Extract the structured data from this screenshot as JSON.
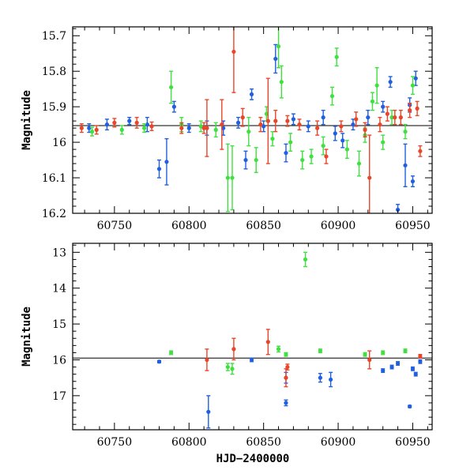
{
  "chart_data": [
    {
      "type": "scatter",
      "title": "",
      "xlabel": "",
      "ylabel": "Magnitude",
      "xlim": [
        60722,
        60963
      ],
      "ylim": [
        16.2,
        15.675
      ],
      "y_inverted": true,
      "xticks": [
        60750,
        60800,
        60850,
        60900,
        60950
      ],
      "xtick_labels": [
        "60750",
        "60800",
        "60850",
        "60900",
        "60950"
      ],
      "yticks": [
        15.7,
        15.8,
        15.9,
        16.0,
        16.1,
        16.2
      ],
      "ytick_labels": [
        "15.7",
        "15.8",
        "15.9",
        "16",
        "16.1",
        "16.2"
      ],
      "reference_line": 15.953,
      "series": [
        {
          "name": "blue",
          "color": "#1f5fe0",
          "points": [
            {
              "x": 60733,
              "y": 15.96,
              "e": 0.012
            },
            {
              "x": 60745,
              "y": 15.95,
              "e": 0.015
            },
            {
              "x": 60760,
              "y": 15.94,
              "e": 0.01
            },
            {
              "x": 60772,
              "y": 15.95,
              "e": 0.02
            },
            {
              "x": 60780,
              "y": 16.075,
              "e": 0.025
            },
            {
              "x": 60785,
              "y": 16.055,
              "e": 0.065
            },
            {
              "x": 60790,
              "y": 15.9,
              "e": 0.015
            },
            {
              "x": 60800,
              "y": 15.96,
              "e": 0.012
            },
            {
              "x": 60812,
              "y": 15.96,
              "e": 0.02
            },
            {
              "x": 60823,
              "y": 15.96,
              "e": 0.02
            },
            {
              "x": 60833,
              "y": 15.945,
              "e": 0.015
            },
            {
              "x": 60838,
              "y": 16.05,
              "e": 0.025
            },
            {
              "x": 60842,
              "y": 15.865,
              "e": 0.015
            },
            {
              "x": 60850,
              "y": 15.955,
              "e": 0.015
            },
            {
              "x": 60858,
              "y": 15.765,
              "e": 0.04
            },
            {
              "x": 60865,
              "y": 16.03,
              "e": 0.025
            },
            {
              "x": 60870,
              "y": 15.935,
              "e": 0.015
            },
            {
              "x": 60880,
              "y": 15.955,
              "e": 0.015
            },
            {
              "x": 60890,
              "y": 15.93,
              "e": 0.02
            },
            {
              "x": 60898,
              "y": 15.975,
              "e": 0.02
            },
            {
              "x": 60903,
              "y": 15.995,
              "e": 0.02
            },
            {
              "x": 60910,
              "y": 15.95,
              "e": 0.015
            },
            {
              "x": 60920,
              "y": 15.93,
              "e": 0.02
            },
            {
              "x": 60930,
              "y": 15.9,
              "e": 0.015
            },
            {
              "x": 60935,
              "y": 15.83,
              "e": 0.015
            },
            {
              "x": 60940,
              "y": 16.19,
              "e": 0.015
            },
            {
              "x": 60945,
              "y": 16.065,
              "e": 0.06
            },
            {
              "x": 60948,
              "y": 15.895,
              "e": 0.02
            },
            {
              "x": 60950,
              "y": 16.11,
              "e": 0.015
            },
            {
              "x": 60952,
              "y": 15.82,
              "e": 0.02
            }
          ]
        },
        {
          "name": "green",
          "color": "#3fe03f",
          "points": [
            {
              "x": 60735,
              "y": 15.97,
              "e": 0.012
            },
            {
              "x": 60755,
              "y": 15.965,
              "e": 0.012
            },
            {
              "x": 60770,
              "y": 15.96,
              "e": 0.012
            },
            {
              "x": 60788,
              "y": 15.845,
              "e": 0.045
            },
            {
              "x": 60795,
              "y": 15.95,
              "e": 0.02
            },
            {
              "x": 60808,
              "y": 15.955,
              "e": 0.015
            },
            {
              "x": 60818,
              "y": 15.965,
              "e": 0.02
            },
            {
              "x": 60826,
              "y": 16.1,
              "e": 0.095
            },
            {
              "x": 60829,
              "y": 16.1,
              "e": 0.09
            },
            {
              "x": 60840,
              "y": 15.97,
              "e": 0.04
            },
            {
              "x": 60845,
              "y": 16.05,
              "e": 0.035
            },
            {
              "x": 60852,
              "y": 15.92,
              "e": 0.02
            },
            {
              "x": 60856,
              "y": 15.99,
              "e": 0.02
            },
            {
              "x": 60860,
              "y": 15.73,
              "e": 0.06
            },
            {
              "x": 60862,
              "y": 15.83,
              "e": 0.045
            },
            {
              "x": 60868,
              "y": 16.0,
              "e": 0.025
            },
            {
              "x": 60876,
              "y": 16.05,
              "e": 0.025
            },
            {
              "x": 60882,
              "y": 16.04,
              "e": 0.02
            },
            {
              "x": 60890,
              "y": 16.01,
              "e": 0.025
            },
            {
              "x": 60896,
              "y": 15.87,
              "e": 0.025
            },
            {
              "x": 60899,
              "y": 15.76,
              "e": 0.025
            },
            {
              "x": 60906,
              "y": 16.02,
              "e": 0.025
            },
            {
              "x": 60914,
              "y": 16.06,
              "e": 0.035
            },
            {
              "x": 60918,
              "y": 15.98,
              "e": 0.02
            },
            {
              "x": 60923,
              "y": 15.885,
              "e": 0.025
            },
            {
              "x": 60926,
              "y": 15.84,
              "e": 0.05
            },
            {
              "x": 60930,
              "y": 16.0,
              "e": 0.02
            },
            {
              "x": 60936,
              "y": 15.93,
              "e": 0.02
            },
            {
              "x": 60945,
              "y": 15.97,
              "e": 0.02
            },
            {
              "x": 60950,
              "y": 15.84,
              "e": 0.025
            }
          ]
        },
        {
          "name": "red",
          "color": "#e8462a",
          "points": [
            {
              "x": 60728,
              "y": 15.96,
              "e": 0.012
            },
            {
              "x": 60738,
              "y": 15.965,
              "e": 0.012
            },
            {
              "x": 60750,
              "y": 15.945,
              "e": 0.012
            },
            {
              "x": 60765,
              "y": 15.945,
              "e": 0.015
            },
            {
              "x": 60775,
              "y": 15.955,
              "e": 0.012
            },
            {
              "x": 60795,
              "y": 15.96,
              "e": 0.015
            },
            {
              "x": 60810,
              "y": 15.96,
              "e": 0.015
            },
            {
              "x": 60812,
              "y": 15.96,
              "e": 0.08
            },
            {
              "x": 60822,
              "y": 15.95,
              "e": 0.07
            },
            {
              "x": 60830,
              "y": 15.745,
              "e": 0.115
            },
            {
              "x": 60836,
              "y": 15.93,
              "e": 0.025
            },
            {
              "x": 60848,
              "y": 15.95,
              "e": 0.02
            },
            {
              "x": 60853,
              "y": 15.94,
              "e": 0.12
            },
            {
              "x": 60858,
              "y": 15.94,
              "e": 0.03
            },
            {
              "x": 60866,
              "y": 15.94,
              "e": 0.015
            },
            {
              "x": 60874,
              "y": 15.95,
              "e": 0.015
            },
            {
              "x": 60886,
              "y": 15.96,
              "e": 0.02
            },
            {
              "x": 60892,
              "y": 16.04,
              "e": 0.02
            },
            {
              "x": 60902,
              "y": 15.955,
              "e": 0.015
            },
            {
              "x": 60912,
              "y": 15.935,
              "e": 0.02
            },
            {
              "x": 60918,
              "y": 15.965,
              "e": 0.02
            },
            {
              "x": 60921,
              "y": 16.1,
              "e": 0.12
            },
            {
              "x": 60928,
              "y": 15.95,
              "e": 0.02
            },
            {
              "x": 60933,
              "y": 15.92,
              "e": 0.02
            },
            {
              "x": 60938,
              "y": 15.93,
              "e": 0.02
            },
            {
              "x": 60942,
              "y": 15.93,
              "e": 0.02
            },
            {
              "x": 60948,
              "y": 15.91,
              "e": 0.02
            },
            {
              "x": 60953,
              "y": 15.905,
              "e": 0.02
            },
            {
              "x": 60955,
              "y": 16.025,
              "e": 0.015
            }
          ]
        }
      ]
    },
    {
      "type": "scatter",
      "title": "",
      "xlabel": "HJD−2400000",
      "ylabel": "Magnitude",
      "xlim": [
        60722,
        60963
      ],
      "ylim": [
        17.95,
        12.75
      ],
      "y_inverted": true,
      "xticks": [
        60750,
        60800,
        60850,
        60900,
        60950
      ],
      "xtick_labels": [
        "60750",
        "60800",
        "60850",
        "60900",
        "60950"
      ],
      "yticks": [
        13,
        14,
        15,
        16,
        17
      ],
      "ytick_labels": [
        "13",
        "14",
        "15",
        "16",
        "17"
      ],
      "reference_line": 15.95,
      "series": [
        {
          "name": "blue",
          "color": "#1f5fe0",
          "points": [
            {
              "x": 60780,
              "y": 16.05,
              "e": 0.03
            },
            {
              "x": 60813,
              "y": 17.45,
              "e": 0.45
            },
            {
              "x": 60842,
              "y": 16.0,
              "e": 0.05
            },
            {
              "x": 60865,
              "y": 16.5,
              "e": 0.15
            },
            {
              "x": 60865,
              "y": 17.2,
              "e": 0.08
            },
            {
              "x": 60888,
              "y": 16.5,
              "e": 0.12
            },
            {
              "x": 60895,
              "y": 16.55,
              "e": 0.2
            },
            {
              "x": 60930,
              "y": 16.3,
              "e": 0.05
            },
            {
              "x": 60936,
              "y": 16.2,
              "e": 0.05
            },
            {
              "x": 60940,
              "y": 16.1,
              "e": 0.05
            },
            {
              "x": 60948,
              "y": 17.3,
              "e": 0.03
            },
            {
              "x": 60950,
              "y": 16.25,
              "e": 0.05
            },
            {
              "x": 60952,
              "y": 16.4,
              "e": 0.05
            },
            {
              "x": 60955,
              "y": 16.05,
              "e": 0.05
            }
          ]
        },
        {
          "name": "green",
          "color": "#3fe03f",
          "points": [
            {
              "x": 60788,
              "y": 15.8,
              "e": 0.05
            },
            {
              "x": 60826,
              "y": 16.2,
              "e": 0.1
            },
            {
              "x": 60829,
              "y": 16.25,
              "e": 0.15
            },
            {
              "x": 60860,
              "y": 15.7,
              "e": 0.08
            },
            {
              "x": 60865,
              "y": 15.85,
              "e": 0.05
            },
            {
              "x": 60878,
              "y": 13.2,
              "e": 0.2
            },
            {
              "x": 60888,
              "y": 15.75,
              "e": 0.05
            },
            {
              "x": 60918,
              "y": 15.85,
              "e": 0.05
            },
            {
              "x": 60930,
              "y": 15.8,
              "e": 0.05
            },
            {
              "x": 60945,
              "y": 15.75,
              "e": 0.05
            }
          ]
        },
        {
          "name": "red",
          "color": "#e8462a",
          "points": [
            {
              "x": 60812,
              "y": 16.0,
              "e": 0.3
            },
            {
              "x": 60830,
              "y": 15.7,
              "e": 0.3
            },
            {
              "x": 60853,
              "y": 15.5,
              "e": 0.35
            },
            {
              "x": 60865,
              "y": 16.5,
              "e": 0.25
            },
            {
              "x": 60866,
              "y": 16.2,
              "e": 0.08
            },
            {
              "x": 60921,
              "y": 16.0,
              "e": 0.25
            },
            {
              "x": 60955,
              "y": 15.9,
              "e": 0.05
            }
          ]
        }
      ]
    }
  ]
}
